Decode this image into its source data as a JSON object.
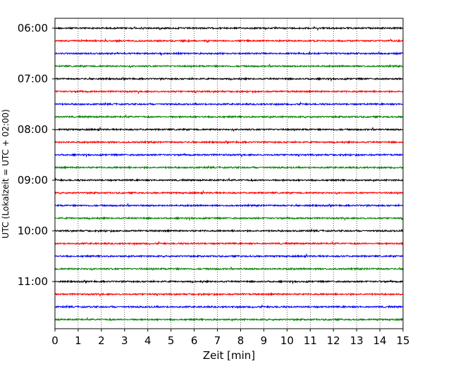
{
  "chart_data": {
    "type": "line",
    "xlabel": "Zeit  [min]",
    "ylabel": "UTC (Lokalzeit = UTC + 02:00)",
    "xlim": [
      0,
      15
    ],
    "x_ticks": [
      "0",
      "1",
      "2",
      "3",
      "4",
      "5",
      "6",
      "7",
      "8",
      "9",
      "10",
      "11",
      "12",
      "13",
      "14",
      "15"
    ],
    "y_tick_labels": [
      {
        "row": 0,
        "label": "06:00"
      },
      {
        "row": 4,
        "label": "07:00"
      },
      {
        "row": 8,
        "label": "08:00"
      },
      {
        "row": 12,
        "label": "09:00"
      },
      {
        "row": 16,
        "label": "10:00"
      },
      {
        "row": 20,
        "label": "11:00"
      }
    ],
    "trace_colors": [
      "#000000",
      "#ff0000",
      "#0000ff",
      "#008000"
    ],
    "trace_count": 24,
    "trace_interval_minutes": 15,
    "x_grid": "dotted",
    "legend": "none"
  }
}
